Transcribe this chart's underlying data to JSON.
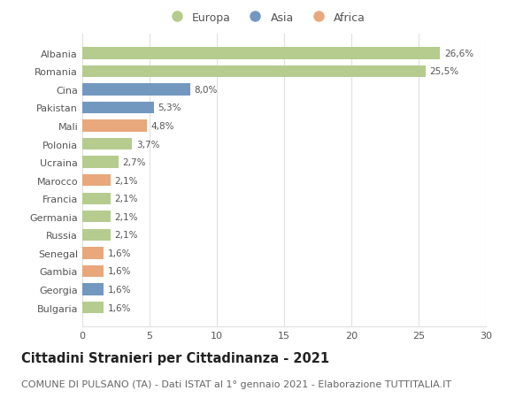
{
  "categories": [
    "Albania",
    "Romania",
    "Cina",
    "Pakistan",
    "Mali",
    "Polonia",
    "Ucraina",
    "Marocco",
    "Francia",
    "Germania",
    "Russia",
    "Senegal",
    "Gambia",
    "Georgia",
    "Bulgaria"
  ],
  "values": [
    26.6,
    25.5,
    8.0,
    5.3,
    4.8,
    3.7,
    2.7,
    2.1,
    2.1,
    2.1,
    2.1,
    1.6,
    1.6,
    1.6,
    1.6
  ],
  "labels": [
    "26,6%",
    "25,5%",
    "8,0%",
    "5,3%",
    "4,8%",
    "3,7%",
    "2,7%",
    "2,1%",
    "2,1%",
    "2,1%",
    "2,1%",
    "1,6%",
    "1,6%",
    "1,6%",
    "1,6%"
  ],
  "continents": [
    "Europa",
    "Europa",
    "Asia",
    "Asia",
    "Africa",
    "Europa",
    "Europa",
    "Africa",
    "Europa",
    "Europa",
    "Europa",
    "Africa",
    "Africa",
    "Asia",
    "Europa"
  ],
  "colors": {
    "Europa": "#b5cc8e",
    "Asia": "#7398c0",
    "Africa": "#e8a87c"
  },
  "xlim": [
    0,
    30
  ],
  "xticks": [
    0,
    5,
    10,
    15,
    20,
    25,
    30
  ],
  "title": "Cittadini Stranieri per Cittadinanza - 2021",
  "subtitle": "COMUNE DI PULSANO (TA) - Dati ISTAT al 1° gennaio 2021 - Elaborazione TUTTITALIA.IT",
  "background_color": "#ffffff",
  "grid_color": "#e0e0e0",
  "bar_height": 0.65,
  "title_fontsize": 10.5,
  "subtitle_fontsize": 8,
  "label_fontsize": 7.5,
  "tick_fontsize": 8,
  "legend_fontsize": 9
}
